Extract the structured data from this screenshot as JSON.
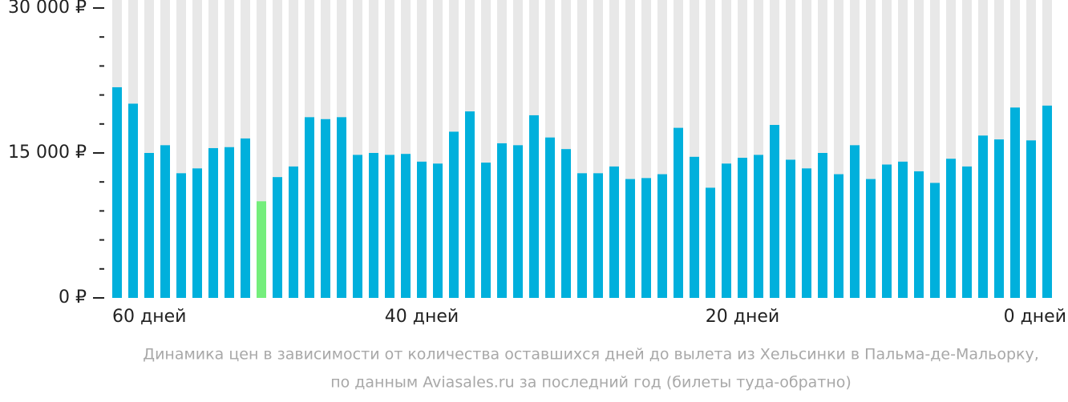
{
  "chart_data": {
    "type": "bar",
    "caption": [
      "Динамика цен в зависимости от количества оставшихся дней до вылета из Хельсинки в Пальма-де-Мальорку,",
      "по данным Aviasales.ru за последний год (билеты туда-обратно)"
    ],
    "categories": [
      "60 дней",
      null,
      null,
      null,
      null,
      null,
      null,
      null,
      null,
      null,
      null,
      null,
      null,
      null,
      null,
      null,
      null,
      null,
      null,
      "40 дней",
      null,
      null,
      null,
      null,
      null,
      null,
      null,
      null,
      null,
      null,
      null,
      null,
      null,
      null,
      null,
      null,
      null,
      null,
      null,
      "20 дней",
      null,
      null,
      null,
      null,
      null,
      null,
      null,
      null,
      null,
      null,
      null,
      null,
      null,
      null,
      null,
      null,
      null,
      null,
      "0 дней"
    ],
    "values": [
      21800,
      20100,
      15000,
      15800,
      12900,
      13400,
      15500,
      15600,
      16500,
      10000,
      12500,
      13600,
      18700,
      18500,
      18700,
      14800,
      15000,
      14800,
      14900,
      14100,
      13900,
      17200,
      19300,
      14000,
      16000,
      15800,
      18900,
      16600,
      15400,
      12900,
      12900,
      13600,
      12300,
      12400,
      12800,
      17600,
      14600,
      11400,
      13900,
      14500,
      14800,
      17900,
      14300,
      13400,
      15000,
      12800,
      15800,
      12300,
      13800,
      14100,
      13100,
      11900,
      14400,
      13600,
      16800,
      16400,
      19700,
      16300,
      19900
    ],
    "color": "#00b0dc",
    "highlight": {
      "index": 9,
      "color": "#74ee7c"
    },
    "background_color": "#e8e8e8",
    "ylim": [
      0,
      30000
    ],
    "yticks": [
      {
        "value": 0,
        "label": "0 ₽"
      },
      {
        "value": 15000,
        "label": "15 000 ₽"
      },
      {
        "value": 30000,
        "label": "30 000 ₽"
      }
    ],
    "yminorticks": [
      3000,
      6000,
      9000,
      12000,
      18000,
      21000,
      24000,
      27000
    ]
  }
}
